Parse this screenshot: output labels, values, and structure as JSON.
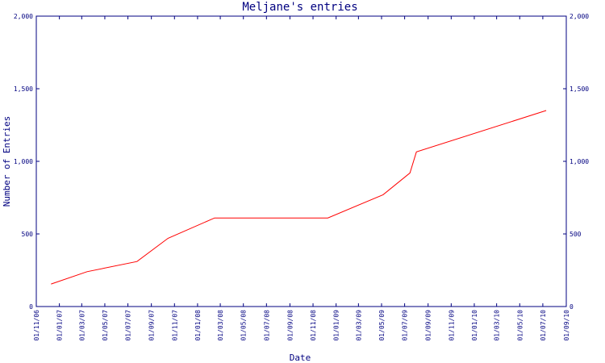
{
  "chart_data": {
    "type": "line",
    "title": "Meljane's entries",
    "xlabel": "Date",
    "ylabel": "Number of Entries",
    "y_ticks": [
      0,
      500,
      1000,
      1500,
      2000
    ],
    "y_tick_labels": [
      "0",
      "500",
      "1,000",
      "1,500",
      "2,000"
    ],
    "ylim": [
      0,
      2000
    ],
    "x_tick_labels": [
      "01/11/06",
      "01/01/07",
      "01/03/07",
      "01/05/07",
      "01/07/07",
      "01/09/07",
      "01/11/07",
      "01/01/08",
      "01/03/08",
      "01/05/08",
      "01/07/08",
      "01/09/08",
      "01/11/08",
      "01/01/09",
      "01/03/09",
      "01/05/09",
      "01/07/09",
      "01/09/09",
      "01/11/09",
      "01/01/10",
      "01/03/10",
      "01/05/10",
      "01/07/10",
      "01/09/10"
    ],
    "xlim": [
      "2006-11-01",
      "2010-09-01"
    ],
    "grid": false,
    "series": [
      {
        "color": "#ff0000",
        "points": [
          {
            "x": "2006-12-10",
            "y": 155
          },
          {
            "x": "2007-03-15",
            "y": 240
          },
          {
            "x": "2007-07-25",
            "y": 310
          },
          {
            "x": "2007-10-15",
            "y": 470
          },
          {
            "x": "2008-02-15",
            "y": 610
          },
          {
            "x": "2008-12-10",
            "y": 610
          },
          {
            "x": "2009-05-05",
            "y": 770
          },
          {
            "x": "2009-07-15",
            "y": 920
          },
          {
            "x": "2009-08-01",
            "y": 1065
          },
          {
            "x": "2010-07-10",
            "y": 1350
          }
        ]
      }
    ]
  }
}
